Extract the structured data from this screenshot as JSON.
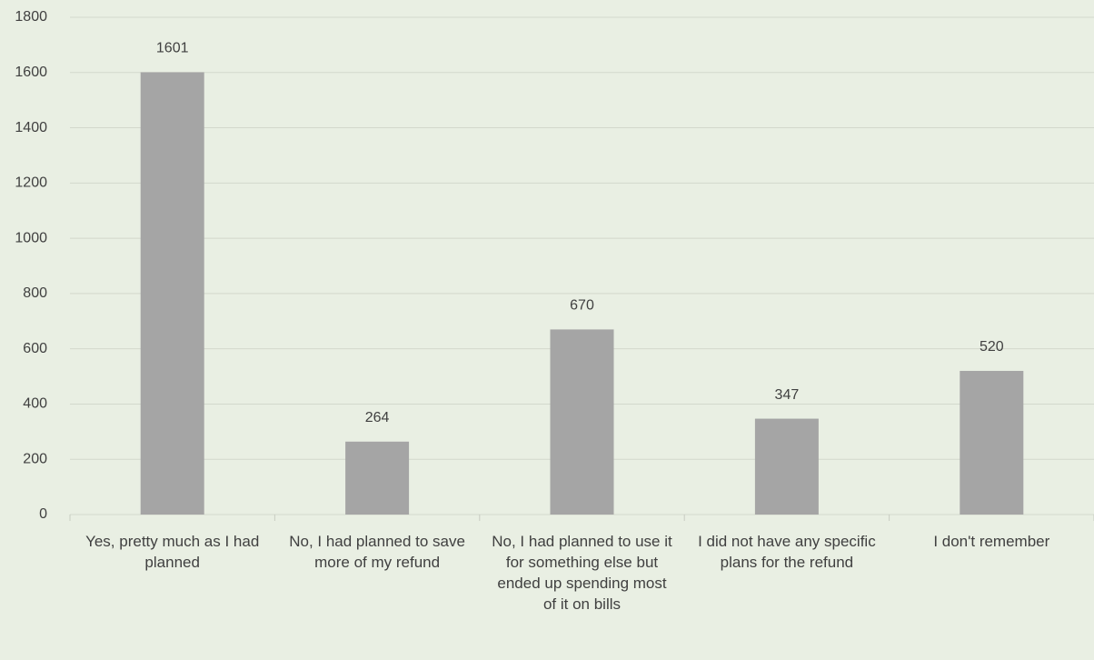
{
  "chart_data": {
    "type": "bar",
    "categories": [
      "Yes, pretty much as I had planned",
      "No, I had planned to save more of my refund",
      "No, I had planned to use it for something else but ended up spending most of it on bills",
      "I did not have any specific plans for the refund",
      "I don't remember"
    ],
    "values": [
      1601,
      264,
      670,
      347,
      520
    ],
    "color": "#a5a5a5",
    "ylim": [
      0,
      1800
    ],
    "yticks": [
      0,
      200,
      400,
      600,
      800,
      1000,
      1200,
      1400,
      1600,
      1800
    ],
    "grid": true
  }
}
